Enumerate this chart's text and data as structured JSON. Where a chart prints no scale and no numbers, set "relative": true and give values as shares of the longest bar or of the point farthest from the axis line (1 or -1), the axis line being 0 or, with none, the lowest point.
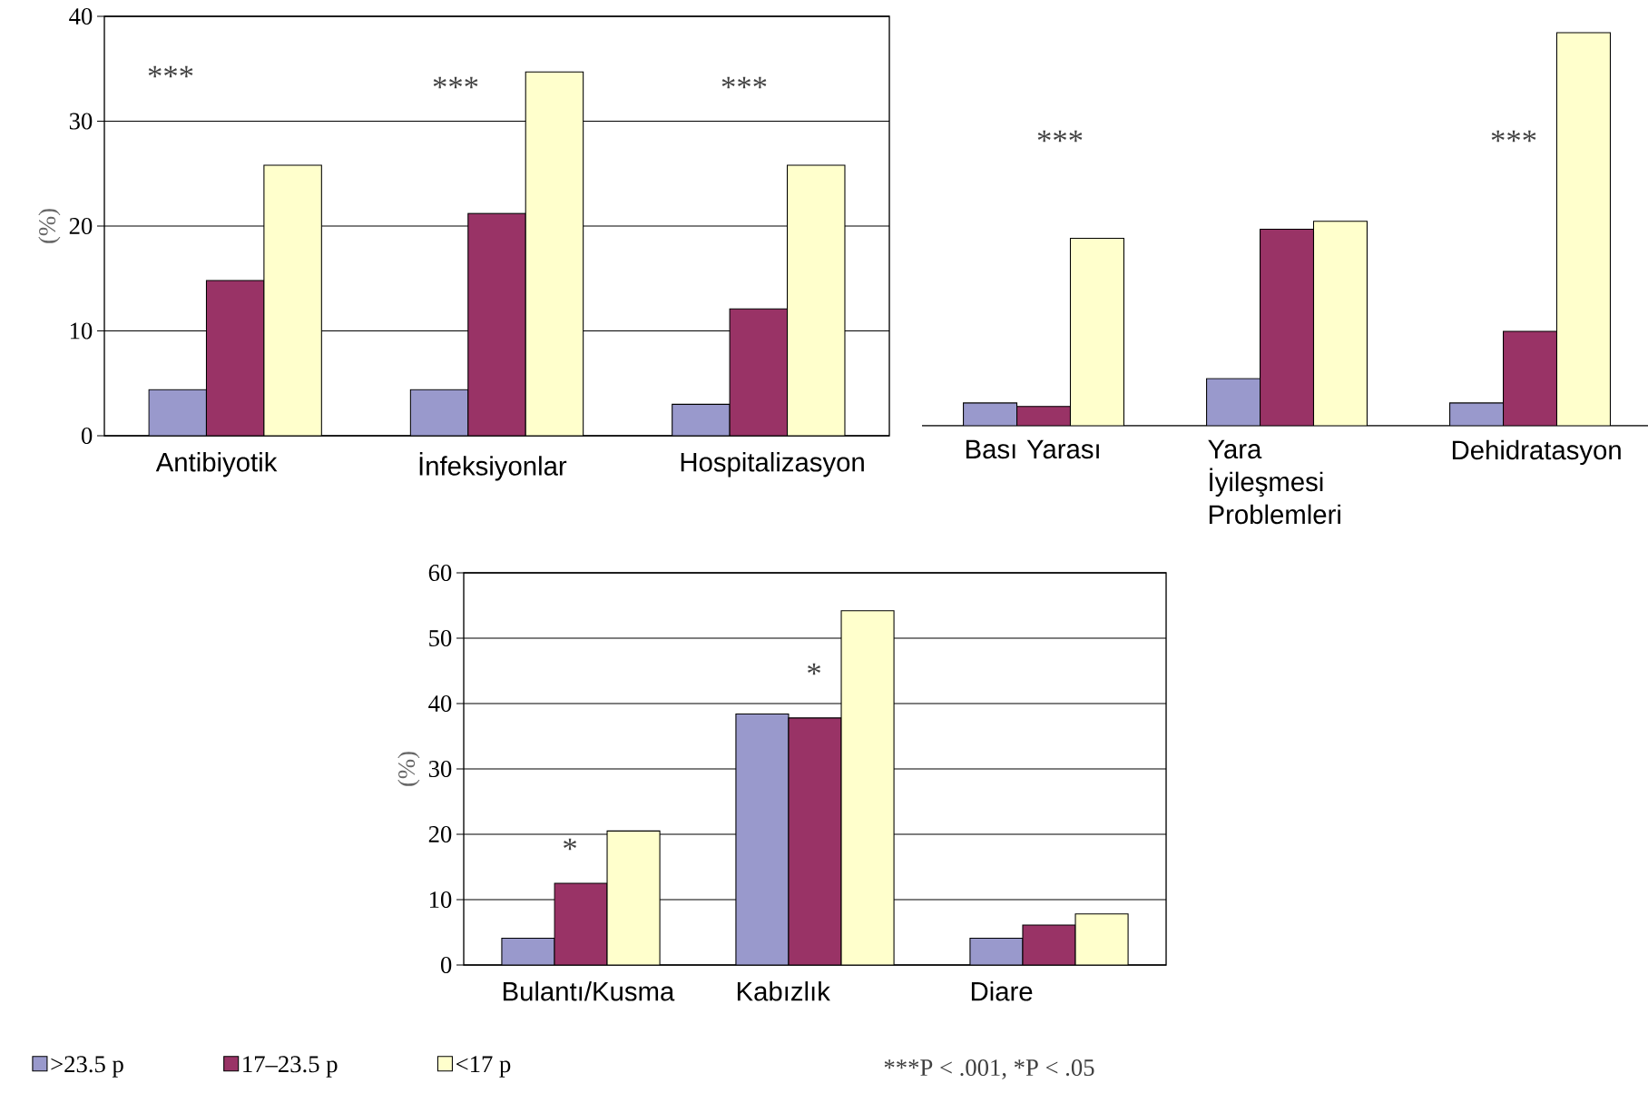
{
  "chart_data": [
    {
      "type": "bar",
      "categories": [
        "Antibiyotik",
        "İnfeksiyonlar",
        "Hospitalizasyon"
      ],
      "series": [
        {
          "color": "#9999cc",
          "values": [
            4.4,
            4.4,
            3.0
          ]
        },
        {
          "color": "#993366",
          "values": [
            14.8,
            21.2,
            12.1
          ]
        },
        {
          "color": "#ffffcc",
          "values": [
            25.8,
            34.7,
            25.8
          ]
        }
      ],
      "ylabel": "(%)",
      "ylim": [
        0,
        40
      ],
      "yticks": [
        0,
        10,
        20,
        30,
        40
      ],
      "grid": "y",
      "annotations": [
        "***",
        "***",
        "***"
      ]
    },
    {
      "type": "bar",
      "categories": [
        "Bası Yarası",
        "Yara İyileşmesi Problemleri",
        "Dehidratasyon"
      ],
      "relative": true,
      "series": [
        {
          "color": "#9999cc",
          "values": [
            0.058,
            0.12,
            0.058
          ]
        },
        {
          "color": "#993366",
          "values": [
            0.049,
            0.5,
            0.24
          ]
        },
        {
          "color": "#ffffcc",
          "values": [
            0.477,
            0.52,
            1
          ]
        }
      ],
      "annotations": [
        "***",
        "***"
      ]
    },
    {
      "type": "bar",
      "categories": [
        "Bulantı/Kusma",
        "Kabızlık",
        "Diare"
      ],
      "series": [
        {
          "name": ">23.5 p",
          "color": "#9999cc",
          "values": [
            4.1,
            38.4,
            4.1
          ]
        },
        {
          "name": "17–23.5 p",
          "color": "#993366",
          "values": [
            12.5,
            37.8,
            6.1
          ]
        },
        {
          "name": "<17 p",
          "color": "#ffffcc",
          "values": [
            20.5,
            54.2,
            7.8
          ]
        }
      ],
      "ylabel": "(%)",
      "ylim": [
        0,
        60
      ],
      "yticks": [
        0,
        10,
        20,
        30,
        40,
        50,
        60
      ],
      "grid": "y",
      "legend": "bottom",
      "annotations": [
        "*",
        "*",
        "***P < .001, *P < .05"
      ]
    }
  ]
}
